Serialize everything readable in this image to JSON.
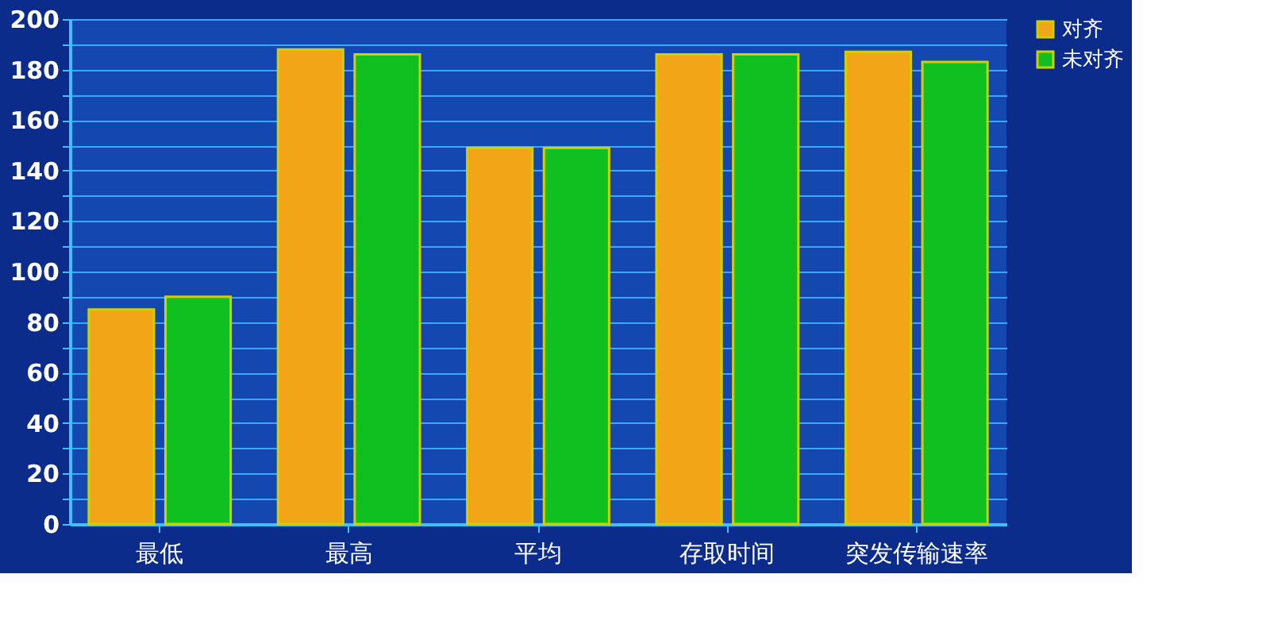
{
  "chart_data": {
    "type": "bar",
    "categories": [
      "最低",
      "最高",
      "平均",
      "存取时间",
      "突发传输速率"
    ],
    "series": [
      {
        "name": "对齐",
        "color": "#f2a516",
        "values": [
          85,
          188,
          149,
          186,
          187
        ]
      },
      {
        "name": "未对齐",
        "color": "#10c020",
        "values": [
          90,
          186,
          149,
          186,
          183
        ]
      }
    ],
    "ylim": [
      0,
      200
    ],
    "yticks": [
      0,
      {
        "value": 10,
        "label": null
      },
      20,
      {
        "value": 30,
        "label": null
      },
      40,
      {
        "value": 50,
        "label": null
      },
      60,
      {
        "value": 70,
        "label": null
      },
      80,
      {
        "value": 90,
        "label": null
      },
      100,
      {
        "value": 110,
        "label": null
      },
      120,
      {
        "value": 130,
        "label": null
      },
      140,
      {
        "value": 150,
        "label": null
      },
      160,
      {
        "value": 170,
        "label": null
      },
      180,
      {
        "value": 190,
        "label": null
      },
      200
    ],
    "grid": true,
    "legend": "right"
  }
}
